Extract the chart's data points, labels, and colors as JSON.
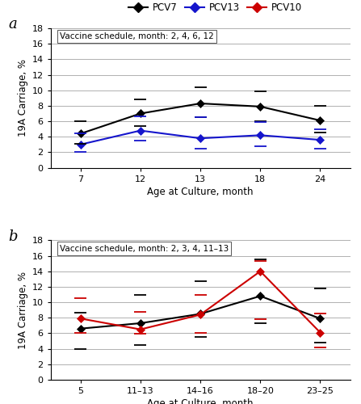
{
  "panel_a": {
    "title_label": "a",
    "annotation": "Vaccine schedule, month: 2, 4, 6, 12",
    "xlabel": "Age at Culture, month",
    "ylabel": "19A Carriage, %",
    "ylim": [
      0,
      18
    ],
    "yticks": [
      0,
      2,
      4,
      6,
      8,
      10,
      12,
      14,
      16,
      18
    ],
    "xtick_labels": [
      "7",
      "12",
      "13",
      "18",
      "24"
    ],
    "xtick_pos": [
      0,
      1,
      2,
      3,
      4
    ],
    "series_order": [
      "pcv7",
      "pcv13"
    ],
    "pcv7": {
      "y": [
        4.4,
        7.0,
        8.3,
        7.9,
        6.1
      ],
      "ci_hi": [
        6.0,
        8.8,
        10.4,
        9.9,
        8.0
      ],
      "ci_lo": [
        3.1,
        5.4,
        6.5,
        6.0,
        4.5
      ],
      "color": "#000000"
    },
    "pcv13": {
      "y": [
        3.0,
        4.8,
        3.8,
        4.2,
        3.6
      ],
      "ci_hi": [
        4.4,
        6.6,
        6.5,
        5.9,
        5.0
      ],
      "ci_lo": [
        2.0,
        3.5,
        2.5,
        2.8,
        2.5
      ],
      "color": "#1515cc"
    }
  },
  "panel_b": {
    "title_label": "b",
    "annotation": "Vaccine schedule, month: 2, 3, 4, 11–13",
    "xlabel": "Age at Culture, month",
    "ylabel": "19A Carriage, %",
    "ylim": [
      0,
      18
    ],
    "yticks": [
      0,
      2,
      4,
      6,
      8,
      10,
      12,
      14,
      16,
      18
    ],
    "xtick_labels": [
      "5",
      "11–13",
      "14–16",
      "18–20",
      "23–25"
    ],
    "xtick_pos": [
      0,
      1,
      2,
      3,
      4
    ],
    "series_order": [
      "pcv7",
      "pcv10"
    ],
    "pcv7": {
      "y": [
        6.6,
        7.3,
        8.5,
        10.8,
        7.9
      ],
      "ci_hi": [
        8.7,
        11.0,
        12.7,
        15.5,
        11.8
      ],
      "ci_lo": [
        4.0,
        4.5,
        5.5,
        7.3,
        4.8
      ],
      "color": "#000000"
    },
    "pcv10": {
      "y": [
        7.9,
        6.5,
        8.4,
        14.0,
        6.1
      ],
      "ci_hi": [
        10.5,
        8.8,
        10.9,
        15.3,
        8.5
      ],
      "ci_lo": [
        6.0,
        5.9,
        6.0,
        7.8,
        4.2
      ],
      "color": "#cc0000"
    }
  },
  "legend": {
    "pcv7_label": "PCV7",
    "pcv13_label": "PCV13",
    "pcv10_label": "PCV10",
    "colors": {
      "pcv7": "#000000",
      "pcv13": "#1515cc",
      "pcv10": "#cc0000"
    }
  },
  "grid_color": "#b0b0b0",
  "bg_color": "#ffffff",
  "marker": "D",
  "markersize": 5,
  "linewidth": 1.5,
  "tick_halfwidth": 0.1
}
